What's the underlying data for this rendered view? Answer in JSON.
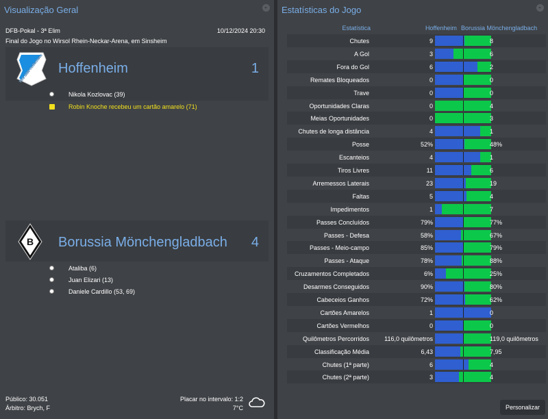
{
  "overview": {
    "title": "Visualização Geral",
    "competition": "DFB-Pokal - 3ª Elim",
    "datetime": "10/12/2024 20:30",
    "venue": "Final do Jogo no Wirsol Rhein-Neckar-Arena, em Sinsheim",
    "home": {
      "name": "Hoffenheim",
      "score": "1",
      "badge_text": "TSG 1899 Hoffenheim",
      "color": "#1a8ee0",
      "events": [
        {
          "icon": "ball-icon",
          "text": "Nikola Kozlovac (39)",
          "color": "#ffffff"
        },
        {
          "icon": "yellow-card-icon",
          "text": "Robin Knoche recebeu um cartão amarelo (71)",
          "color": "#f2e01e"
        }
      ]
    },
    "away": {
      "name": "Borussia Mönchengladbach",
      "score": "4",
      "badge_text": "B",
      "events": [
        {
          "icon": "ball-icon",
          "text": "Ataliba (6)"
        },
        {
          "icon": "ball-icon",
          "text": "Juan Elizari (13)"
        },
        {
          "icon": "ball-icon",
          "text": "Daniele Cardillo (53, 69)"
        }
      ]
    },
    "attendance": "Público: 30.051",
    "referee": "Árbitro: Brych, F",
    "halftime": "Placar no intervalo: 1:2",
    "temperature": "7°C",
    "weather_icon": "cloud-icon"
  },
  "stats": {
    "title": "Estatísticas do Jogo",
    "col_stat": "Estatística",
    "col_home": "Hoffenheim",
    "col_away": "Borussia Mönchengladbach",
    "home_color": "#2f5fd0",
    "away_color": "#0cc84a",
    "customize_label": "Personalizar",
    "rows": [
      {
        "label": "Chutes",
        "home": "9",
        "away": "8",
        "h": 9,
        "a": 8
      },
      {
        "label": "A Gol",
        "home": "3",
        "away": "6",
        "h": 3,
        "a": 6
      },
      {
        "label": "Fora do Gol",
        "home": "6",
        "away": "2",
        "h": 6,
        "a": 2
      },
      {
        "label": "Remates Bloqueados",
        "home": "0",
        "away": "0",
        "h": 0,
        "a": 0
      },
      {
        "label": "Trave",
        "home": "0",
        "away": "0",
        "h": 0,
        "a": 0
      },
      {
        "label": "Oportunidades Claras",
        "home": "0",
        "away": "4",
        "h": 0,
        "a": 4
      },
      {
        "label": "Meias Oportunidades",
        "home": "0",
        "away": "3",
        "h": 0,
        "a": 3
      },
      {
        "label": "Chutes de longa distância",
        "home": "4",
        "away": "1",
        "h": 4,
        "a": 1
      },
      {
        "label": "Posse",
        "home": "52%",
        "away": "48%",
        "h": 52,
        "a": 48
      },
      {
        "label": "Escanteios",
        "home": "4",
        "away": "1",
        "h": 4,
        "a": 1
      },
      {
        "label": "Tiros Livres",
        "home": "11",
        "away": "6",
        "h": 11,
        "a": 6
      },
      {
        "label": "Arremessos Laterais",
        "home": "23",
        "away": "19",
        "h": 23,
        "a": 19
      },
      {
        "label": "Faltas",
        "home": "5",
        "away": "4",
        "h": 5,
        "a": 4
      },
      {
        "label": "Impedimentos",
        "home": "1",
        "away": "7",
        "h": 1,
        "a": 7
      },
      {
        "label": "Passes Concluídos",
        "home": "79%",
        "away": "77%",
        "h": 79,
        "a": 77
      },
      {
        "label": "Passes - Defesa",
        "home": "58%",
        "away": "67%",
        "h": 58,
        "a": 67
      },
      {
        "label": "Passes - Meio-campo",
        "home": "85%",
        "away": "79%",
        "h": 85,
        "a": 79
      },
      {
        "label": "Passes - Ataque",
        "home": "78%",
        "away": "88%",
        "h": 78,
        "a": 88
      },
      {
        "label": "Cruzamentos Completados",
        "home": "6%",
        "away": "25%",
        "h": 6,
        "a": 25
      },
      {
        "label": "Desarmes Conseguidos",
        "home": "90%",
        "away": "80%",
        "h": 90,
        "a": 80
      },
      {
        "label": "Cabeceios Ganhos",
        "home": "72%",
        "away": "62%",
        "h": 72,
        "a": 62
      },
      {
        "label": "Cartões Amarelos",
        "home": "1",
        "away": "0",
        "h": 1,
        "a": 0
      },
      {
        "label": "Cartões Vermelhos",
        "home": "0",
        "away": "0",
        "h": 0,
        "a": 0
      },
      {
        "label": "Quilômetros Percorridos",
        "home": "116,0 quilômetros",
        "away": "119,0 quilômetros",
        "h": 116,
        "a": 119
      },
      {
        "label": "Classificação Média",
        "home": "6,43",
        "away": "7,95",
        "h": 6.43,
        "a": 7.95
      },
      {
        "label": "Chutes (1ª parte)",
        "home": "6",
        "away": "4",
        "h": 6,
        "a": 4
      },
      {
        "label": "Chutes (2ª parte)",
        "home": "3",
        "away": "4",
        "h": 3,
        "a": 4
      }
    ]
  }
}
